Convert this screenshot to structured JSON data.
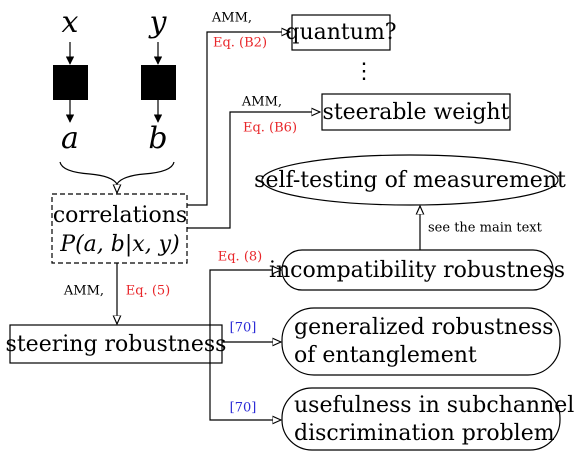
{
  "inputs": [
    "x",
    "y"
  ],
  "outputs": [
    "a",
    "b"
  ],
  "correlations": {
    "label": "correlations",
    "formula": "P(a, b|x, y)"
  },
  "nodes": {
    "quantum": "quantum?",
    "dots": "⋮",
    "steerable_weight": "steerable weight",
    "self_testing": "self-testing of measurement",
    "incompatibility": "incompatibility robustness",
    "steering": "steering robustness",
    "entanglement": [
      "generalized robustness",
      "of entanglement"
    ],
    "usefulness": [
      "usefulness in subchannel",
      "discrimination problem"
    ]
  },
  "edge_labels": {
    "to_quantum": [
      "AMM,",
      "Eq. (B2)"
    ],
    "to_steerable": [
      "AMM,",
      "Eq. (B6)"
    ],
    "to_self_testing": "see the main text",
    "to_steering": [
      "AMM,",
      "Eq. (5)"
    ],
    "to_incompatibility": "Eq. (8)",
    "to_entanglement": "[70]",
    "to_usefulness": "[70]"
  }
}
